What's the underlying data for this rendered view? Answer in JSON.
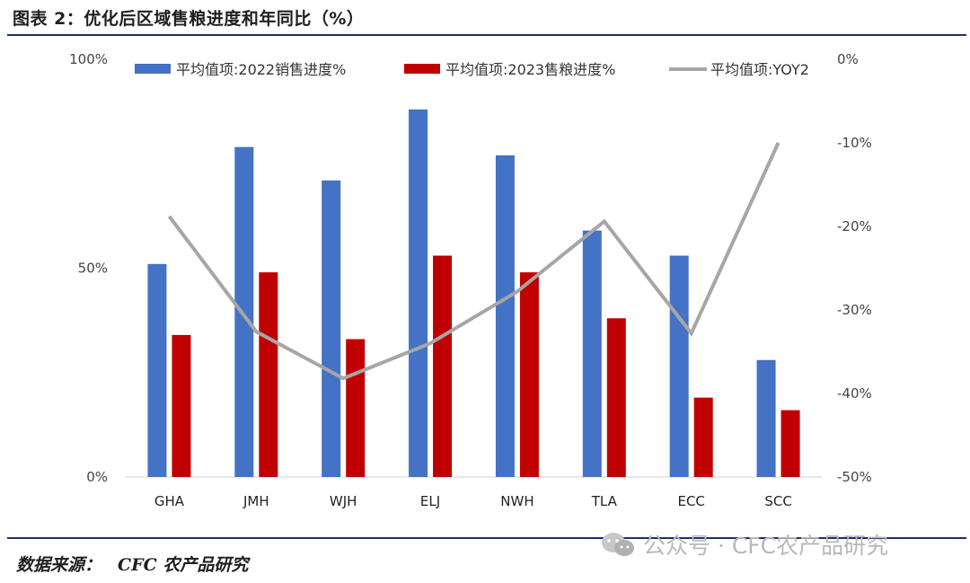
{
  "figure": {
    "title": "图表 2：优化后区域售粮进度和年同比（%）",
    "source_label": "数据来源：",
    "source_value": "CFC 农产品研究",
    "watermark": "公众号 · CFC农产品研究"
  },
  "colors": {
    "series_2022": "#4472c4",
    "series_2023": "#c00000",
    "series_yoy": "#a6a6a6"
  },
  "chart_data": {
    "type": "bar",
    "categories": [
      "GHA",
      "JMH",
      "WJH",
      "ELJ",
      "NWH",
      "TLA",
      "ECC",
      "SCC"
    ],
    "series": [
      {
        "name": "平均值项:2022销售进度%",
        "type": "bar",
        "axis": "left",
        "values": [
          51,
          79,
          71,
          88,
          77,
          59,
          53,
          28
        ]
      },
      {
        "name": "平均值项:2023售粮进度%",
        "type": "bar",
        "axis": "left",
        "values": [
          34,
          49,
          33,
          53,
          49,
          38,
          19,
          16
        ]
      },
      {
        "name": "平均值项:YOY2",
        "type": "line",
        "axis": "right",
        "values": [
          -18.8,
          -32.6,
          -38.2,
          -34.0,
          -27.8,
          -19.4,
          -32.8,
          -10.0
        ]
      }
    ],
    "y_left": {
      "range": [
        0,
        100
      ],
      "ticks": [
        "100%",
        "50%",
        "0%"
      ],
      "tick_values": [
        100,
        50,
        0
      ]
    },
    "y_right": {
      "range": [
        -50,
        0
      ],
      "ticks": [
        "0%",
        "-10%",
        "-20%",
        "-30%",
        "-40%",
        "-50%"
      ],
      "tick_values": [
        0,
        -10,
        -20,
        -30,
        -40,
        -50
      ]
    },
    "legend_position": "top",
    "grid": false
  }
}
